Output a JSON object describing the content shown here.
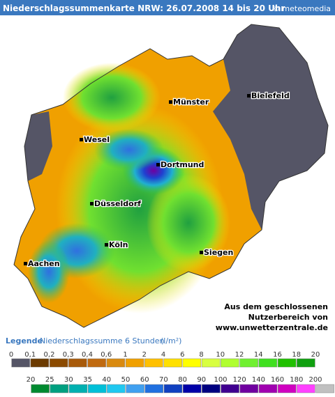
{
  "header": {
    "title": "Niederschlagssummenkarte NRW: 26.07.2008 14 bis 20 Uhr",
    "brand": "© meteomedia"
  },
  "cities": [
    {
      "label": "Münster"
    },
    {
      "label": "Bielefeld"
    },
    {
      "label": "Wesel"
    },
    {
      "label": "Dortmund"
    },
    {
      "label": "Düsseldorf"
    },
    {
      "label": "Köln"
    },
    {
      "label": "Siegen"
    },
    {
      "label": "Aachen"
    }
  ],
  "note": [
    "Aus dem geschlossenen",
    "Nutzerbereich von",
    "www.unwetterzentrale.de"
  ],
  "legend": {
    "title": "Legende",
    "subtitle": "Niederschlagssumme 6 Stunden",
    "unit": "(l/m²)",
    "rows": [
      {
        "labels": [
          "0",
          "0,1",
          "0,2",
          "0,3",
          "0,4",
          "0,6",
          "1",
          "2",
          "4",
          "6",
          "8",
          "10",
          "12",
          "14",
          "16",
          "18",
          "20"
        ],
        "colors": [
          "#555566",
          "#6b3a00",
          "#8b4a00",
          "#a85a0a",
          "#c06a10",
          "#d98a10",
          "#f0a000",
          "#ffc000",
          "#ffe000",
          "#ffff00",
          "#d8ff40",
          "#b0ff30",
          "#70f030",
          "#40e020",
          "#20c000",
          "#10a010"
        ]
      },
      {
        "labels": [
          "20",
          "25",
          "30",
          "35",
          "40",
          "50",
          "60",
          "70",
          "80",
          "90",
          "100",
          "120",
          "140",
          "160",
          "180",
          "200"
        ],
        "colors": [
          "#008a30",
          "#00a080",
          "#00b0b0",
          "#00c0d8",
          "#20c8f0",
          "#40a0f0",
          "#2070e0",
          "#1040c0",
          "#0000a8",
          "#000080",
          "#400090",
          "#7000a0",
          "#a000b0",
          "#d000c0",
          "#ff40ff",
          "#c0c0c0"
        ]
      }
    ]
  }
}
